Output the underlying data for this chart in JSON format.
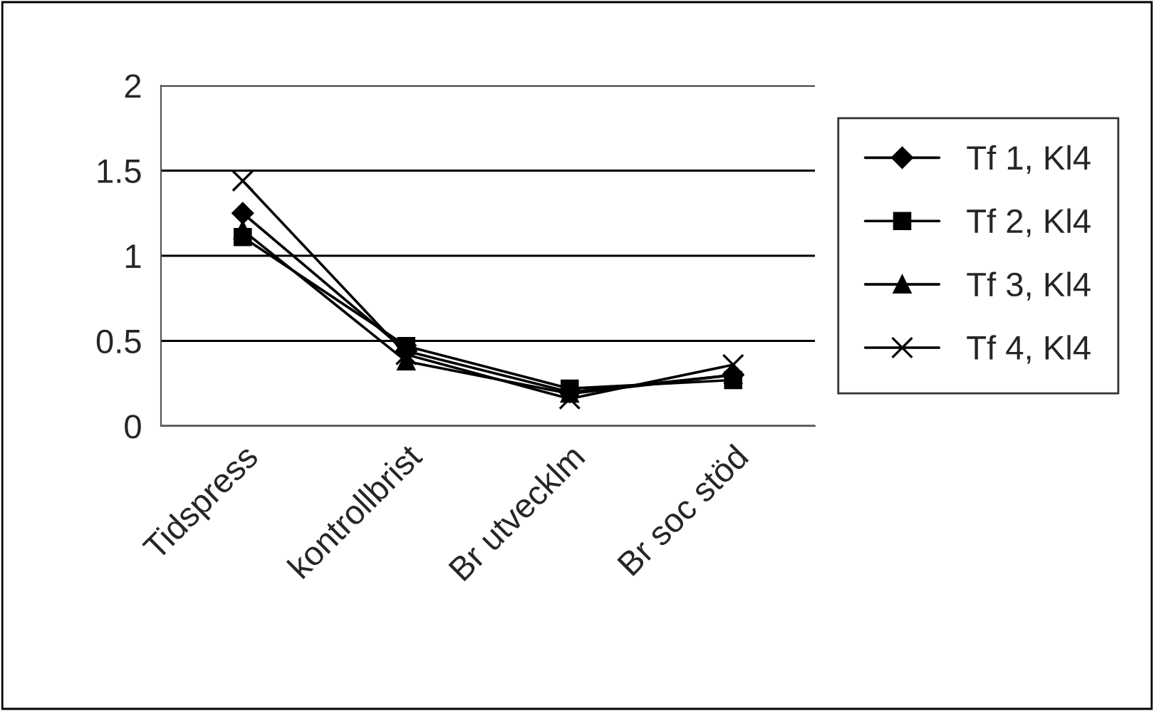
{
  "chart_data": {
    "type": "line",
    "categories": [
      "Tidspress",
      "kontrollbrist",
      "Br utvecklm",
      "Br soc stöd"
    ],
    "series": [
      {
        "name": "Tf 1, Kl4",
        "color": "#000000",
        "marker": "diamond",
        "values": [
          1.25,
          0.44,
          0.2,
          0.3
        ]
      },
      {
        "name": "Tf 2, Kl4",
        "color": "#000000",
        "marker": "square",
        "values": [
          1.11,
          0.47,
          0.22,
          0.27
        ]
      },
      {
        "name": "Tf 3, Kl4",
        "color": "#000000",
        "marker": "triangle",
        "values": [
          1.15,
          0.38,
          0.19,
          0.3
        ]
      },
      {
        "name": "Tf 4, Kl4",
        "color": "#000000",
        "marker": "cross",
        "values": [
          1.44,
          0.42,
          0.16,
          0.36
        ]
      }
    ],
    "ylim": [
      0,
      2
    ],
    "yticks": [
      0,
      0.5,
      1,
      1.5,
      2
    ],
    "grid": "y",
    "legend": "right",
    "line_style": "solid"
  }
}
